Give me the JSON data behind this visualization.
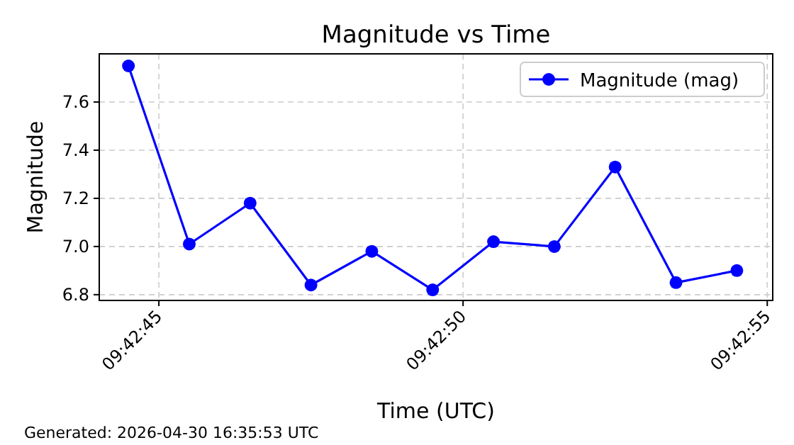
{
  "chart_data": {
    "type": "line",
    "title": "Magnitude vs Time",
    "xlabel": "Time (UTC)",
    "ylabel": "Magnitude",
    "x": [
      9.7123611,
      9.7126389,
      9.7129167,
      9.7131944,
      9.7134722,
      9.71375,
      9.7140278,
      9.7143056,
      9.7145833,
      9.7148611,
      9.7151389
    ],
    "series": [
      {
        "name": "Magnitude (mag)",
        "color": "#0000ff",
        "values": [
          7.75,
          7.01,
          7.18,
          6.84,
          6.98,
          6.82,
          7.02,
          7.0,
          7.33,
          6.85,
          6.9
        ]
      }
    ],
    "xlim": [
      9.7122278,
      9.7153028
    ],
    "xticks": [
      {
        "value": 9.7125,
        "label": "09:42:45"
      },
      {
        "value": 9.7138889,
        "label": "09:42:50"
      },
      {
        "value": 9.7152778,
        "label": "09:42:55"
      }
    ],
    "ylim": [
      6.776,
      7.8
    ],
    "yticks": [
      {
        "value": 6.8,
        "label": "6.8"
      },
      {
        "value": 7.0,
        "label": "7.0"
      },
      {
        "value": 7.2,
        "label": "7.2"
      },
      {
        "value": 7.4,
        "label": "7.4"
      },
      {
        "value": 7.6,
        "label": "7.6"
      }
    ],
    "grid": true,
    "legend": "top right",
    "marker": "circle",
    "line_style": "solid",
    "annotations": [
      "Generated: 2026-04-30 16:35:53 UTC"
    ]
  }
}
